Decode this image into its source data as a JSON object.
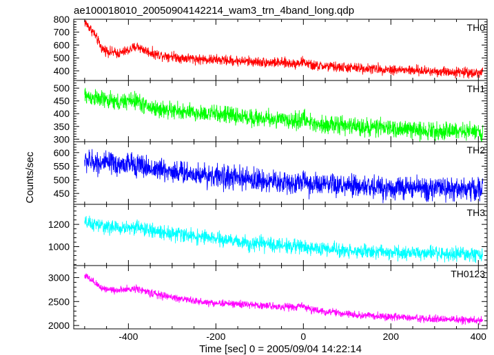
{
  "chart_data": [
    {
      "type": "line",
      "panel": "TH0",
      "label": "TH0",
      "color": "#ff0000",
      "title": "ae100018010_20050904142214_wam3_trn_4band_long.qdp",
      "xlim": [
        -525,
        420
      ],
      "ylim": [
        325,
        800
      ],
      "yticks": [
        400,
        500,
        600,
        700,
        800
      ],
      "x": [
        -500,
        -480,
        -460,
        -440,
        -420,
        -400,
        -380,
        -360,
        -340,
        -320,
        -300,
        -280,
        -260,
        -240,
        -220,
        -200,
        -180,
        -160,
        -140,
        -120,
        -100,
        -80,
        -60,
        -40,
        -20,
        0,
        20,
        40,
        60,
        80,
        100,
        120,
        140,
        160,
        180,
        200,
        220,
        240,
        260,
        280,
        300,
        320,
        340,
        360,
        380,
        400,
        410
      ],
      "values": [
        780,
        700,
        570,
        545,
        535,
        560,
        590,
        555,
        530,
        520,
        515,
        500,
        498,
        490,
        488,
        485,
        482,
        478,
        476,
        472,
        468,
        465,
        463,
        460,
        456,
        470,
        440,
        437,
        433,
        428,
        425,
        422,
        419,
        416,
        413,
        410,
        407,
        404,
        401,
        398,
        396,
        394,
        392,
        390,
        388,
        386,
        384
      ],
      "noise": 28
    },
    {
      "type": "line",
      "panel": "TH1",
      "label": "TH1",
      "color": "#00ff00",
      "xlim": [
        -525,
        420
      ],
      "ylim": [
        290,
        530
      ],
      "yticks": [
        300,
        350,
        400,
        450,
        500
      ],
      "x": [
        -500,
        -480,
        -460,
        -440,
        -420,
        -400,
        -380,
        -360,
        -340,
        -320,
        -300,
        -280,
        -260,
        -240,
        -220,
        -200,
        -180,
        -160,
        -140,
        -120,
        -100,
        -80,
        -60,
        -40,
        -20,
        0,
        20,
        40,
        60,
        80,
        100,
        120,
        140,
        160,
        180,
        200,
        220,
        240,
        260,
        280,
        300,
        320,
        340,
        360,
        380,
        400,
        410
      ],
      "values": [
        470,
        462,
        455,
        448,
        442,
        452,
        450,
        430,
        420,
        415,
        412,
        408,
        404,
        400,
        402,
        398,
        396,
        392,
        388,
        385,
        382,
        380,
        377,
        374,
        370,
        380,
        362,
        360,
        357,
        354,
        352,
        350,
        348,
        346,
        344,
        342,
        340,
        338,
        336,
        335,
        334,
        333,
        332,
        331,
        330,
        330,
        329
      ],
      "noise": 24
    },
    {
      "type": "line",
      "panel": "TH2",
      "label": "TH2",
      "color": "#0000ff",
      "xlim": [
        -525,
        420
      ],
      "ylim": [
        410,
        640
      ],
      "yticks": [
        450,
        500,
        550,
        600
      ],
      "x": [
        -500,
        -480,
        -460,
        -440,
        -420,
        -400,
        -380,
        -360,
        -340,
        -320,
        -300,
        -280,
        -260,
        -240,
        -220,
        -200,
        -180,
        -160,
        -140,
        -120,
        -100,
        -80,
        -60,
        -40,
        -20,
        0,
        20,
        40,
        60,
        80,
        100,
        120,
        140,
        160,
        180,
        200,
        220,
        240,
        260,
        280,
        300,
        320,
        340,
        360,
        380,
        400,
        410
      ],
      "values": [
        570,
        566,
        562,
        558,
        554,
        560,
        556,
        545,
        540,
        536,
        532,
        528,
        524,
        520,
        518,
        514,
        510,
        507,
        504,
        501,
        498,
        495,
        492,
        490,
        488,
        496,
        482,
        480,
        479,
        477,
        476,
        475,
        474,
        473,
        472,
        471,
        470,
        470,
        469,
        469,
        468,
        468,
        467,
        467,
        466,
        466,
        466
      ],
      "noise": 30
    },
    {
      "type": "line",
      "panel": "TH3",
      "label": "TH3",
      "color": "#00ffff",
      "xlim": [
        -525,
        420
      ],
      "ylim": [
        830,
        1380
      ],
      "yticks": [
        1000,
        1200
      ],
      "x": [
        -500,
        -480,
        -460,
        -440,
        -420,
        -400,
        -380,
        -360,
        -340,
        -320,
        -300,
        -280,
        -260,
        -240,
        -220,
        -200,
        -180,
        -160,
        -140,
        -120,
        -100,
        -80,
        -60,
        -40,
        -20,
        0,
        20,
        40,
        60,
        80,
        100,
        120,
        140,
        160,
        180,
        200,
        220,
        240,
        260,
        280,
        300,
        320,
        340,
        360,
        380,
        400,
        410
      ],
      "values": [
        1210,
        1200,
        1185,
        1175,
        1165,
        1170,
        1180,
        1150,
        1140,
        1130,
        1120,
        1110,
        1100,
        1090,
        1080,
        1070,
        1060,
        1050,
        1040,
        1030,
        1025,
        1020,
        1015,
        1010,
        1005,
        1000,
        985,
        980,
        975,
        970,
        965,
        960,
        957,
        954,
        951,
        948,
        945,
        942,
        940,
        938,
        936,
        934,
        932,
        930,
        928,
        927,
        926
      ],
      "noise": 45
    },
    {
      "type": "line",
      "panel": "TH0123",
      "label": "TH0123",
      "color": "#ff00ff",
      "xlim": [
        -525,
        420
      ],
      "ylim": [
        1930,
        3250
      ],
      "yticks": [
        2000,
        2500,
        3000
      ],
      "xticks": [
        -400,
        -200,
        0,
        200,
        400
      ],
      "xlabel": "Time [sec] 0 = 2005/09/04 14:22:14",
      "ylabel": "Counts/sec",
      "x": [
        -500,
        -480,
        -460,
        -440,
        -420,
        -400,
        -380,
        -360,
        -340,
        -320,
        -300,
        -280,
        -260,
        -240,
        -220,
        -200,
        -180,
        -160,
        -140,
        -120,
        -100,
        -80,
        -60,
        -40,
        -20,
        0,
        20,
        40,
        60,
        80,
        100,
        120,
        140,
        160,
        180,
        200,
        220,
        240,
        260,
        280,
        300,
        320,
        340,
        360,
        380,
        400,
        410
      ],
      "values": [
        3050,
        2900,
        2780,
        2750,
        2730,
        2750,
        2780,
        2700,
        2660,
        2620,
        2590,
        2560,
        2530,
        2500,
        2480,
        2470,
        2460,
        2450,
        2440,
        2430,
        2420,
        2410,
        2400,
        2390,
        2380,
        2420,
        2320,
        2300,
        2280,
        2260,
        2240,
        2220,
        2210,
        2200,
        2190,
        2180,
        2170,
        2160,
        2150,
        2140,
        2135,
        2130,
        2125,
        2120,
        2115,
        2110,
        2105
      ],
      "noise": 55
    }
  ]
}
